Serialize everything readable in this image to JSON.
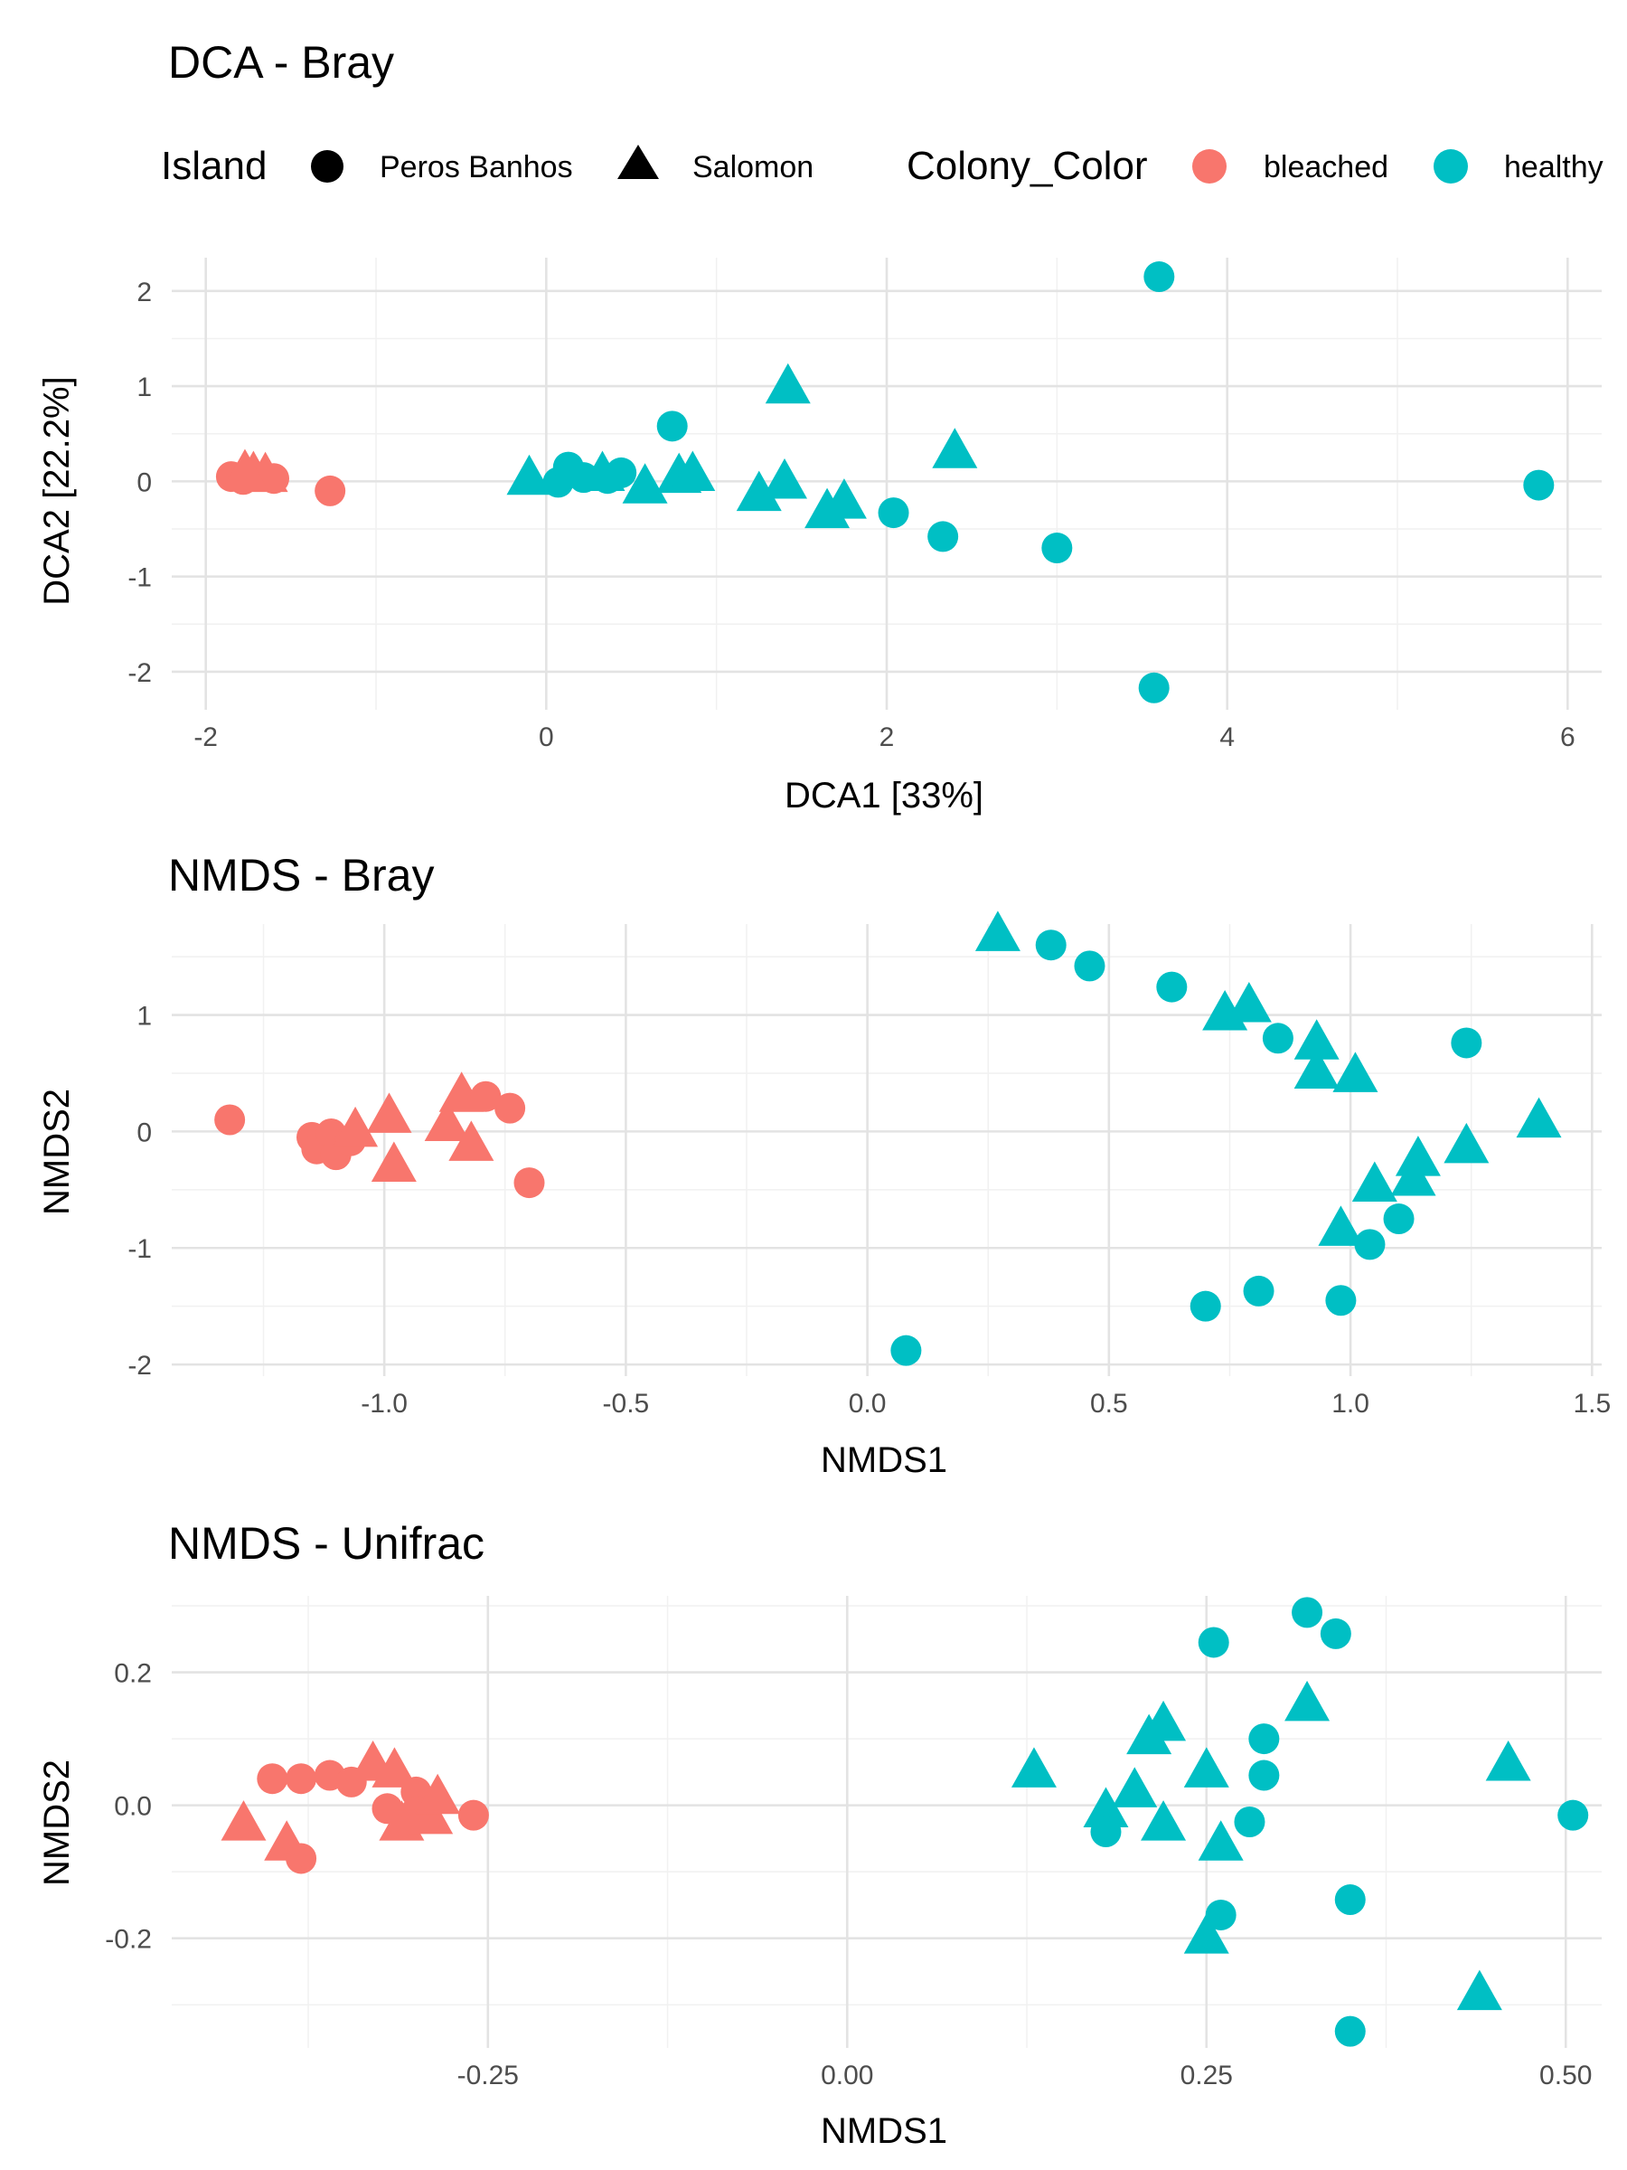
{
  "legend": {
    "shape_title": "Island",
    "shape_items": [
      {
        "label": "Peros Banhos",
        "shape": "circle"
      },
      {
        "label": "Salomon",
        "shape": "triangle"
      }
    ],
    "color_title": "Colony_Color",
    "color_items": [
      {
        "label": "bleached",
        "color": "#F8766D"
      },
      {
        "label": "healthy",
        "color": "#00BFC4"
      }
    ]
  },
  "chart_data": [
    {
      "type": "scatter",
      "title": "DCA - Bray",
      "xlabel": "DCA1   [33%]",
      "ylabel": "DCA2   [22.2%]",
      "xlim": [
        -2.2,
        6.2
      ],
      "ylim": [
        -2.4,
        2.35
      ],
      "xticks": [
        -2,
        0,
        2,
        4,
        6
      ],
      "xtick_labels": [
        "-2",
        "0",
        "2",
        "4",
        "6"
      ],
      "yticks": [
        -2,
        -1,
        0,
        1,
        2
      ],
      "ytick_labels": [
        "-2",
        "-1",
        "0",
        "1",
        "2"
      ],
      "grid": true,
      "points": [
        {
          "x": -1.85,
          "y": 0.05,
          "island": "Peros Banhos",
          "color": "bleached"
        },
        {
          "x": -1.78,
          "y": 0.02,
          "island": "Peros Banhos",
          "color": "bleached"
        },
        {
          "x": -1.72,
          "y": 0.06,
          "island": "Salomon",
          "color": "bleached"
        },
        {
          "x": -1.65,
          "y": 0.05,
          "island": "Salomon",
          "color": "bleached"
        },
        {
          "x": -1.6,
          "y": 0.03,
          "island": "Peros Banhos",
          "color": "bleached"
        },
        {
          "x": -1.77,
          "y": 0.08,
          "island": "Salomon",
          "color": "bleached"
        },
        {
          "x": -1.27,
          "y": -0.1,
          "island": "Peros Banhos",
          "color": "bleached"
        },
        {
          "x": -0.1,
          "y": 0.02,
          "island": "Salomon",
          "color": "healthy"
        },
        {
          "x": 0.07,
          "y": -0.01,
          "island": "Peros Banhos",
          "color": "healthy"
        },
        {
          "x": 0.13,
          "y": 0.15,
          "island": "Peros Banhos",
          "color": "healthy"
        },
        {
          "x": 0.22,
          "y": 0.04,
          "island": "Peros Banhos",
          "color": "healthy"
        },
        {
          "x": 0.33,
          "y": 0.06,
          "island": "Salomon",
          "color": "healthy"
        },
        {
          "x": 0.36,
          "y": 0.03,
          "island": "Peros Banhos",
          "color": "healthy"
        },
        {
          "x": 0.44,
          "y": 0.09,
          "island": "Peros Banhos",
          "color": "healthy"
        },
        {
          "x": 0.58,
          "y": -0.07,
          "island": "Salomon",
          "color": "healthy"
        },
        {
          "x": 0.74,
          "y": 0.58,
          "island": "Peros Banhos",
          "color": "healthy"
        },
        {
          "x": 0.78,
          "y": 0.04,
          "island": "Salomon",
          "color": "healthy"
        },
        {
          "x": 0.86,
          "y": 0.06,
          "island": "Salomon",
          "color": "healthy"
        },
        {
          "x": 1.25,
          "y": -0.15,
          "island": "Salomon",
          "color": "healthy"
        },
        {
          "x": 1.4,
          "y": -0.02,
          "island": "Salomon",
          "color": "healthy"
        },
        {
          "x": 1.42,
          "y": 0.98,
          "island": "Salomon",
          "color": "healthy"
        },
        {
          "x": 1.65,
          "y": -0.33,
          "island": "Salomon",
          "color": "healthy"
        },
        {
          "x": 1.75,
          "y": -0.23,
          "island": "Salomon",
          "color": "healthy"
        },
        {
          "x": 2.04,
          "y": -0.33,
          "island": "Peros Banhos",
          "color": "healthy"
        },
        {
          "x": 2.33,
          "y": -0.58,
          "island": "Peros Banhos",
          "color": "healthy"
        },
        {
          "x": 2.4,
          "y": 0.3,
          "island": "Salomon",
          "color": "healthy"
        },
        {
          "x": 3.0,
          "y": -0.7,
          "island": "Peros Banhos",
          "color": "healthy"
        },
        {
          "x": 3.6,
          "y": 2.15,
          "island": "Peros Banhos",
          "color": "healthy"
        },
        {
          "x": 3.57,
          "y": -2.17,
          "island": "Peros Banhos",
          "color": "healthy"
        },
        {
          "x": 5.83,
          "y": -0.04,
          "island": "Peros Banhos",
          "color": "healthy"
        }
      ]
    },
    {
      "type": "scatter",
      "title": "NMDS - Bray",
      "xlabel": "NMDS1",
      "ylabel": "NMDS2",
      "xlim": [
        -1.44,
        1.52
      ],
      "ylim": [
        -2.1,
        1.78
      ],
      "xticks": [
        -1.0,
        -0.5,
        0.0,
        0.5,
        1.0,
        1.5
      ],
      "xtick_labels": [
        "-1.0",
        "-0.5",
        "0.0",
        "0.5",
        "1.0",
        "1.5"
      ],
      "yticks": [
        -2,
        -1,
        0,
        1
      ],
      "ytick_labels": [
        "-2",
        "-1",
        "0",
        "1"
      ],
      "grid": true,
      "points": [
        {
          "x": -1.32,
          "y": 0.1,
          "island": "Peros Banhos",
          "color": "bleached"
        },
        {
          "x": -1.15,
          "y": -0.05,
          "island": "Peros Banhos",
          "color": "bleached"
        },
        {
          "x": -1.14,
          "y": -0.15,
          "island": "Peros Banhos",
          "color": "bleached"
        },
        {
          "x": -1.11,
          "y": -0.02,
          "island": "Peros Banhos",
          "color": "bleached"
        },
        {
          "x": -1.1,
          "y": -0.2,
          "island": "Peros Banhos",
          "color": "bleached"
        },
        {
          "x": -1.07,
          "y": -0.08,
          "island": "Peros Banhos",
          "color": "bleached"
        },
        {
          "x": -1.06,
          "y": 0.0,
          "island": "Salomon",
          "color": "bleached"
        },
        {
          "x": -0.99,
          "y": 0.12,
          "island": "Salomon",
          "color": "bleached"
        },
        {
          "x": -0.98,
          "y": -0.3,
          "island": "Salomon",
          "color": "bleached"
        },
        {
          "x": -0.87,
          "y": 0.05,
          "island": "Salomon",
          "color": "bleached"
        },
        {
          "x": -0.84,
          "y": 0.3,
          "island": "Salomon",
          "color": "bleached"
        },
        {
          "x": -0.82,
          "y": -0.12,
          "island": "Salomon",
          "color": "bleached"
        },
        {
          "x": -0.79,
          "y": 0.3,
          "island": "Peros Banhos",
          "color": "bleached"
        },
        {
          "x": -0.74,
          "y": 0.2,
          "island": "Peros Banhos",
          "color": "bleached"
        },
        {
          "x": -0.7,
          "y": -0.44,
          "island": "Peros Banhos",
          "color": "bleached"
        },
        {
          "x": 0.08,
          "y": -1.88,
          "island": "Peros Banhos",
          "color": "healthy"
        },
        {
          "x": 0.27,
          "y": 1.68,
          "island": "Salomon",
          "color": "healthy"
        },
        {
          "x": 0.38,
          "y": 1.6,
          "island": "Peros Banhos",
          "color": "healthy"
        },
        {
          "x": 0.46,
          "y": 1.42,
          "island": "Peros Banhos",
          "color": "healthy"
        },
        {
          "x": 0.63,
          "y": 1.24,
          "island": "Peros Banhos",
          "color": "healthy"
        },
        {
          "x": 0.74,
          "y": 1.0,
          "island": "Salomon",
          "color": "healthy"
        },
        {
          "x": 0.79,
          "y": 1.07,
          "island": "Salomon",
          "color": "healthy"
        },
        {
          "x": 0.85,
          "y": 0.8,
          "island": "Peros Banhos",
          "color": "healthy"
        },
        {
          "x": 0.93,
          "y": 0.75,
          "island": "Salomon",
          "color": "healthy"
        },
        {
          "x": 0.93,
          "y": 0.5,
          "island": "Salomon",
          "color": "healthy"
        },
        {
          "x": 1.01,
          "y": 0.47,
          "island": "Salomon",
          "color": "healthy"
        },
        {
          "x": 1.24,
          "y": 0.76,
          "island": "Peros Banhos",
          "color": "healthy"
        },
        {
          "x": 1.39,
          "y": 0.08,
          "island": "Salomon",
          "color": "healthy"
        },
        {
          "x": 1.24,
          "y": -0.14,
          "island": "Salomon",
          "color": "healthy"
        },
        {
          "x": 1.14,
          "y": -0.25,
          "island": "Salomon",
          "color": "healthy"
        },
        {
          "x": 1.13,
          "y": -0.42,
          "island": "Salomon",
          "color": "healthy"
        },
        {
          "x": 1.05,
          "y": -0.47,
          "island": "Salomon",
          "color": "healthy"
        },
        {
          "x": 1.1,
          "y": -0.75,
          "island": "Peros Banhos",
          "color": "healthy"
        },
        {
          "x": 0.98,
          "y": -0.85,
          "island": "Salomon",
          "color": "healthy"
        },
        {
          "x": 1.04,
          "y": -0.97,
          "island": "Peros Banhos",
          "color": "healthy"
        },
        {
          "x": 0.81,
          "y": -1.37,
          "island": "Peros Banhos",
          "color": "healthy"
        },
        {
          "x": 0.7,
          "y": -1.5,
          "island": "Peros Banhos",
          "color": "healthy"
        },
        {
          "x": 0.98,
          "y": -1.45,
          "island": "Peros Banhos",
          "color": "healthy"
        }
      ]
    },
    {
      "type": "scatter",
      "title": "NMDS - Unifrac",
      "xlabel": "NMDS1",
      "ylabel": "NMDS2",
      "xlim": [
        -0.47,
        0.525
      ],
      "ylim": [
        -0.365,
        0.315
      ],
      "xticks": [
        -0.25,
        0.0,
        0.25,
        0.5
      ],
      "xtick_labels": [
        "-0.25",
        "0.00",
        "0.25",
        "0.50"
      ],
      "yticks": [
        -0.2,
        0.0,
        0.2
      ],
      "ytick_labels": [
        "-0.2",
        "0.0",
        "0.2"
      ],
      "grid": true,
      "points": [
        {
          "x": -0.42,
          "y": -0.03,
          "island": "Salomon",
          "color": "bleached"
        },
        {
          "x": -0.39,
          "y": -0.06,
          "island": "Salomon",
          "color": "bleached"
        },
        {
          "x": -0.38,
          "y": -0.08,
          "island": "Peros Banhos",
          "color": "bleached"
        },
        {
          "x": -0.4,
          "y": 0.04,
          "island": "Peros Banhos",
          "color": "bleached"
        },
        {
          "x": -0.38,
          "y": 0.04,
          "island": "Peros Banhos",
          "color": "bleached"
        },
        {
          "x": -0.36,
          "y": 0.045,
          "island": "Peros Banhos",
          "color": "bleached"
        },
        {
          "x": -0.345,
          "y": 0.035,
          "island": "Peros Banhos",
          "color": "bleached"
        },
        {
          "x": -0.33,
          "y": 0.06,
          "island": "Salomon",
          "color": "bleached"
        },
        {
          "x": -0.315,
          "y": 0.05,
          "island": "Salomon",
          "color": "bleached"
        },
        {
          "x": -0.3,
          "y": 0.02,
          "island": "Peros Banhos",
          "color": "bleached"
        },
        {
          "x": -0.32,
          "y": -0.005,
          "island": "Peros Banhos",
          "color": "bleached"
        },
        {
          "x": -0.31,
          "y": -0.03,
          "island": "Salomon",
          "color": "bleached"
        },
        {
          "x": -0.3,
          "y": -0.01,
          "island": "Peros Banhos",
          "color": "bleached"
        },
        {
          "x": -0.29,
          "y": -0.02,
          "island": "Salomon",
          "color": "bleached"
        },
        {
          "x": -0.285,
          "y": 0.01,
          "island": "Salomon",
          "color": "bleached"
        },
        {
          "x": -0.26,
          "y": -0.015,
          "island": "Peros Banhos",
          "color": "bleached"
        },
        {
          "x": 0.13,
          "y": 0.05,
          "island": "Salomon",
          "color": "healthy"
        },
        {
          "x": 0.18,
          "y": -0.01,
          "island": "Salomon",
          "color": "healthy"
        },
        {
          "x": 0.18,
          "y": -0.04,
          "island": "Peros Banhos",
          "color": "healthy"
        },
        {
          "x": 0.2,
          "y": 0.02,
          "island": "Salomon",
          "color": "healthy"
        },
        {
          "x": 0.21,
          "y": 0.1,
          "island": "Salomon",
          "color": "healthy"
        },
        {
          "x": 0.22,
          "y": 0.12,
          "island": "Salomon",
          "color": "healthy"
        },
        {
          "x": 0.22,
          "y": -0.03,
          "island": "Salomon",
          "color": "healthy"
        },
        {
          "x": 0.25,
          "y": 0.05,
          "island": "Salomon",
          "color": "healthy"
        },
        {
          "x": 0.255,
          "y": 0.245,
          "island": "Peros Banhos",
          "color": "healthy"
        },
        {
          "x": 0.26,
          "y": -0.06,
          "island": "Salomon",
          "color": "healthy"
        },
        {
          "x": 0.26,
          "y": -0.165,
          "island": "Peros Banhos",
          "color": "healthy"
        },
        {
          "x": 0.25,
          "y": -0.2,
          "island": "Salomon",
          "color": "healthy"
        },
        {
          "x": 0.28,
          "y": -0.025,
          "island": "Peros Banhos",
          "color": "healthy"
        },
        {
          "x": 0.29,
          "y": 0.045,
          "island": "Peros Banhos",
          "color": "healthy"
        },
        {
          "x": 0.29,
          "y": 0.1,
          "island": "Peros Banhos",
          "color": "healthy"
        },
        {
          "x": 0.32,
          "y": 0.15,
          "island": "Salomon",
          "color": "healthy"
        },
        {
          "x": 0.32,
          "y": 0.29,
          "island": "Peros Banhos",
          "color": "healthy"
        },
        {
          "x": 0.34,
          "y": 0.258,
          "island": "Peros Banhos",
          "color": "healthy"
        },
        {
          "x": 0.35,
          "y": -0.142,
          "island": "Peros Banhos",
          "color": "healthy"
        },
        {
          "x": 0.35,
          "y": -0.34,
          "island": "Peros Banhos",
          "color": "healthy"
        },
        {
          "x": 0.44,
          "y": -0.285,
          "island": "Salomon",
          "color": "healthy"
        },
        {
          "x": 0.46,
          "y": 0.06,
          "island": "Salomon",
          "color": "healthy"
        },
        {
          "x": 0.505,
          "y": -0.015,
          "island": "Peros Banhos",
          "color": "healthy"
        }
      ]
    }
  ]
}
